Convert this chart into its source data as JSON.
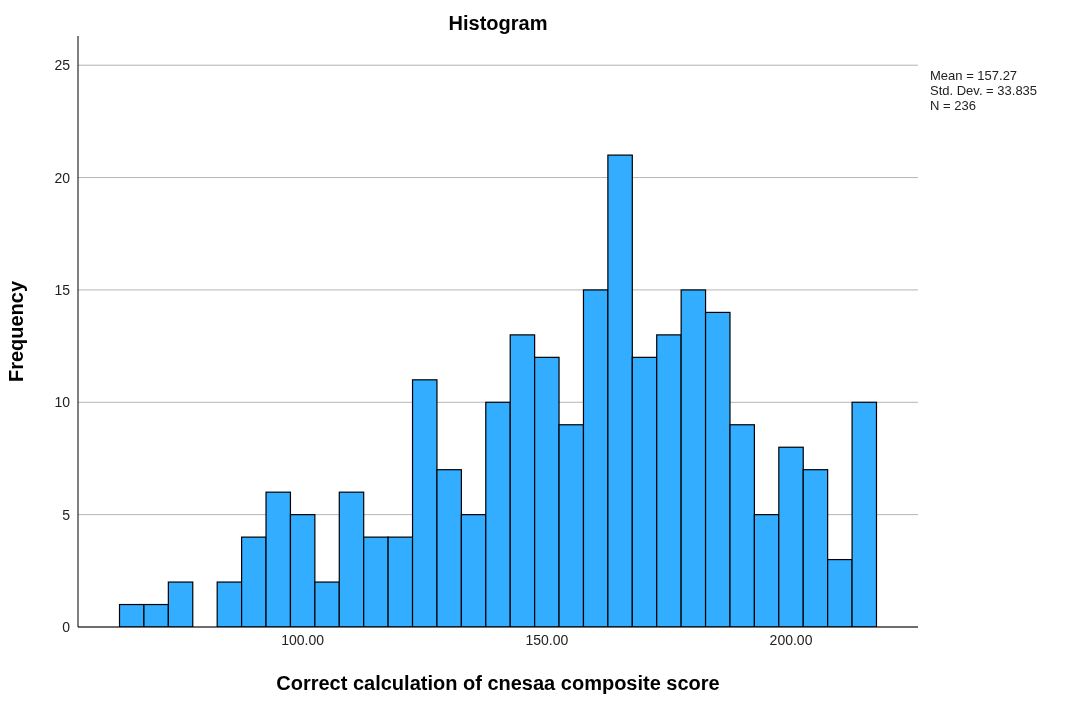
{
  "chart_data": {
    "type": "histogram",
    "title": "Histogram",
    "xlabel": "Correct calculation of cnesaa composite score",
    "ylabel": "Frequency",
    "bins": [
      62.5,
      67.5,
      72.5,
      77.5,
      82.5,
      87.5,
      92.5,
      97.5,
      102.5,
      107.5,
      112.5,
      117.5,
      122.5,
      127.5,
      132.5,
      137.5,
      142.5,
      147.5,
      152.5,
      157.5,
      162.5,
      167.5,
      172.5,
      177.5,
      182.5,
      187.5,
      192.5,
      197.5,
      202.5,
      207.5,
      212.5,
      217.5
    ],
    "values": [
      1,
      1,
      2,
      0,
      2,
      4,
      6,
      5,
      2,
      6,
      4,
      4,
      11,
      7,
      5,
      10,
      13,
      12,
      9,
      15,
      21,
      12,
      13,
      15,
      14,
      9,
      5,
      8,
      7,
      3,
      10
    ],
    "color": "#33adff",
    "xlim": [
      54,
      226
    ],
    "xticks": [
      {
        "value": 100,
        "label": "100.00"
      },
      {
        "value": 150,
        "label": "150.00"
      },
      {
        "value": 200,
        "label": "200.00"
      }
    ],
    "ylim": [
      0,
      26.3
    ],
    "yticks": [
      0,
      5,
      10,
      15,
      20,
      25
    ],
    "grid": "y",
    "annotations": [
      "Mean = 157.27",
      "Std. Dev. = 33.835",
      "N = 236"
    ]
  }
}
